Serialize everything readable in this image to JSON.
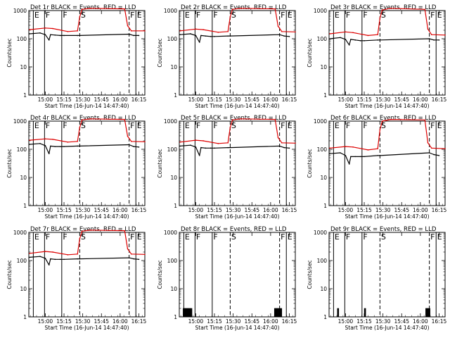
{
  "figure": {
    "xtick_labels": [
      "15:00",
      "15:15",
      "15:30",
      "15:45",
      "16:00",
      "16:15"
    ],
    "ytick_labels": [
      "1",
      "10",
      "100",
      "1000"
    ],
    "ylabel": "Counts/sec",
    "xlabel": "Start Time (16-Jun-14 14:47:40)"
  },
  "legend_colors": {
    "events": "#000000",
    "lld": "#dd0000"
  },
  "chart_data": [
    {
      "type": "line",
      "title": "Det 1r BLACK = Events, RED = LLD",
      "xlabel": "Start Time (16-Jun-14 14:47:40)",
      "ylabel": "Counts/sec",
      "yscale": "log",
      "ylim": [
        1,
        1000
      ],
      "xlim": [
        14.78,
        16.33
      ],
      "x_units": "hours (UT, 16-Jun-14)",
      "markers": [
        {
          "label": "E",
          "x": 14.84,
          "style": "solid"
        },
        {
          "label": "F",
          "x": 14.99,
          "style": "solid"
        },
        {
          "label": "F",
          "x": 15.22,
          "style": "solid"
        },
        {
          "label": "S",
          "x": 15.46,
          "style": "dashed"
        },
        {
          "label": "F",
          "x": 16.12,
          "style": "dashed"
        },
        {
          "label": "E",
          "x": 16.21,
          "style": "solid"
        }
      ],
      "series": [
        {
          "name": "Events",
          "color": "#000000",
          "x": [
            14.79,
            14.93,
            15.0,
            15.05,
            15.07,
            15.13,
            15.2,
            15.25,
            15.43,
            15.46,
            16.12,
            16.18,
            16.25
          ],
          "y": [
            150,
            160,
            140,
            90,
            140,
            135,
            130,
            130,
            130,
            130,
            145,
            130,
            130
          ]
        },
        {
          "name": "LLD",
          "color": "#dd0000",
          "x": [
            14.79,
            15.0,
            15.1,
            15.3,
            15.43,
            15.46,
            15.49,
            15.6,
            16.06,
            16.1,
            16.15,
            16.33
          ],
          "y": [
            210,
            240,
            230,
            180,
            190,
            600,
            1100,
            1200,
            1150,
            290,
            190,
            190
          ]
        }
      ]
    },
    {
      "type": "line",
      "title": "Det 2r BLACK = Events, RED = LLD",
      "xlabel": "Start Time (16-Jun-14 14:47:40)",
      "ylabel": "Counts/sec",
      "yscale": "log",
      "ylim": [
        1,
        1000
      ],
      "xlim": [
        14.78,
        16.33
      ],
      "x_units": "hours (UT, 16-Jun-14)",
      "markers": [
        {
          "label": "E",
          "x": 14.84,
          "style": "solid"
        },
        {
          "label": "F",
          "x": 14.99,
          "style": "solid"
        },
        {
          "label": "F",
          "x": 15.22,
          "style": "solid"
        },
        {
          "label": "S",
          "x": 15.46,
          "style": "dashed"
        },
        {
          "label": "F",
          "x": 16.12,
          "style": "dashed"
        },
        {
          "label": "E",
          "x": 16.21,
          "style": "solid"
        }
      ],
      "series": [
        {
          "name": "Events",
          "color": "#000000",
          "x": [
            14.79,
            14.93,
            15.0,
            15.05,
            15.07,
            15.13,
            15.2,
            15.25,
            15.43,
            15.46,
            16.12,
            16.18,
            16.25
          ],
          "y": [
            140,
            150,
            130,
            75,
            130,
            125,
            120,
            120,
            125,
            125,
            140,
            125,
            120
          ]
        },
        {
          "name": "LLD",
          "color": "#dd0000",
          "x": [
            14.79,
            15.0,
            15.1,
            15.3,
            15.43,
            15.46,
            15.49,
            15.6,
            16.06,
            16.1,
            16.15,
            16.33
          ],
          "y": [
            190,
            220,
            210,
            170,
            180,
            600,
            1100,
            1200,
            1150,
            280,
            180,
            175
          ]
        }
      ]
    },
    {
      "type": "line",
      "title": "Det 3r BLACK = Events, RED = LLD",
      "xlabel": "Start Time (16-Jun-14 14:47:40)",
      "ylabel": "Counts/sec",
      "yscale": "log",
      "ylim": [
        1,
        1000
      ],
      "xlim": [
        14.78,
        16.33
      ],
      "x_units": "hours (UT, 16-Jun-14)",
      "markers": [
        {
          "label": "E",
          "x": 14.84,
          "style": "solid"
        },
        {
          "label": "F",
          "x": 14.99,
          "style": "solid"
        },
        {
          "label": "F",
          "x": 15.22,
          "style": "solid"
        },
        {
          "label": "S",
          "x": 15.46,
          "style": "dashed"
        },
        {
          "label": "F",
          "x": 16.12,
          "style": "dashed"
        },
        {
          "label": "E",
          "x": 16.21,
          "style": "solid"
        }
      ],
      "series": [
        {
          "name": "Events",
          "color": "#000000",
          "x": [
            14.79,
            14.93,
            15.0,
            15.05,
            15.07,
            15.13,
            15.2,
            15.25,
            15.43,
            15.46,
            16.12,
            16.18,
            16.25
          ],
          "y": [
            100,
            110,
            95,
            60,
            95,
            90,
            85,
            85,
            90,
            90,
            100,
            90,
            90
          ]
        },
        {
          "name": "LLD",
          "color": "#dd0000",
          "x": [
            14.79,
            15.0,
            15.1,
            15.3,
            15.43,
            15.46,
            15.49,
            15.6,
            16.06,
            16.1,
            16.15,
            16.33
          ],
          "y": [
            150,
            175,
            165,
            130,
            140,
            550,
            1050,
            1200,
            1100,
            220,
            140,
            135
          ]
        }
      ]
    },
    {
      "type": "line",
      "title": "Det 4r BLACK = Events, RED = LLD",
      "xlabel": "Start Time (16-Jun-14 14:47:40)",
      "ylabel": "Counts/sec",
      "yscale": "log",
      "ylim": [
        1,
        1000
      ],
      "xlim": [
        14.78,
        16.33
      ],
      "x_units": "hours (UT, 16-Jun-14)",
      "markers": [
        {
          "label": "E",
          "x": 14.84,
          "style": "solid"
        },
        {
          "label": "F",
          "x": 14.99,
          "style": "solid"
        },
        {
          "label": "F",
          "x": 15.22,
          "style": "solid"
        },
        {
          "label": "S",
          "x": 15.46,
          "style": "dashed"
        },
        {
          "label": "F",
          "x": 16.12,
          "style": "dashed"
        },
        {
          "label": "E",
          "x": 16.21,
          "style": "solid"
        }
      ],
      "series": [
        {
          "name": "Events",
          "color": "#000000",
          "x": [
            14.79,
            14.93,
            15.0,
            15.05,
            15.07,
            15.13,
            15.2,
            15.25,
            15.43,
            15.46,
            16.12,
            16.18,
            16.25
          ],
          "y": [
            150,
            160,
            135,
            70,
            130,
            125,
            125,
            125,
            130,
            130,
            145,
            125,
            120
          ]
        },
        {
          "name": "LLD",
          "color": "#dd0000",
          "x": [
            14.79,
            15.0,
            15.1,
            15.3,
            15.43,
            15.46,
            15.49,
            15.6,
            16.06,
            16.1,
            16.15,
            16.33
          ],
          "y": [
            210,
            235,
            225,
            180,
            190,
            600,
            1100,
            1200,
            1150,
            290,
            190,
            185
          ]
        }
      ]
    },
    {
      "type": "line",
      "title": "Det 5r BLACK = Events, RED = LLD",
      "xlabel": "Start Time (16-Jun-14 14:47:40)",
      "ylabel": "Counts/sec",
      "yscale": "log",
      "ylim": [
        1,
        1000
      ],
      "xlim": [
        14.78,
        16.33
      ],
      "x_units": "hours (UT, 16-Jun-14)",
      "markers": [
        {
          "label": "E",
          "x": 14.84,
          "style": "solid"
        },
        {
          "label": "F",
          "x": 14.99,
          "style": "solid"
        },
        {
          "label": "F",
          "x": 15.22,
          "style": "solid"
        },
        {
          "label": "S",
          "x": 15.46,
          "style": "dashed"
        },
        {
          "label": "F",
          "x": 16.12,
          "style": "dashed"
        },
        {
          "label": "E",
          "x": 16.21,
          "style": "solid"
        }
      ],
      "series": [
        {
          "name": "Events",
          "color": "#000000",
          "x": [
            14.79,
            14.93,
            15.0,
            15.05,
            15.07,
            15.13,
            15.2,
            15.25,
            15.43,
            15.46,
            16.12,
            16.18,
            16.25
          ],
          "y": [
            130,
            140,
            120,
            60,
            115,
            110,
            110,
            110,
            115,
            115,
            130,
            115,
            110
          ]
        },
        {
          "name": "LLD",
          "color": "#dd0000",
          "x": [
            14.79,
            15.0,
            15.1,
            15.3,
            15.43,
            15.46,
            15.49,
            15.6,
            16.06,
            16.1,
            16.15,
            16.33
          ],
          "y": [
            180,
            210,
            200,
            160,
            170,
            600,
            1100,
            1200,
            1150,
            260,
            170,
            165
          ]
        }
      ]
    },
    {
      "type": "line",
      "title": "Det 6r BLACK = Events, RED = LLD",
      "xlabel": "Start Time (16-Jun-14 14:47:40)",
      "ylabel": "Counts/sec",
      "yscale": "log",
      "ylim": [
        1,
        1000
      ],
      "xlim": [
        14.78,
        16.33
      ],
      "x_units": "hours (UT, 16-Jun-14)",
      "markers": [
        {
          "label": "E",
          "x": 14.84,
          "style": "solid"
        },
        {
          "label": "F",
          "x": 14.99,
          "style": "solid"
        },
        {
          "label": "F",
          "x": 15.22,
          "style": "solid"
        },
        {
          "label": "S",
          "x": 15.46,
          "style": "dashed"
        },
        {
          "label": "F",
          "x": 16.12,
          "style": "dashed"
        },
        {
          "label": "E",
          "x": 16.21,
          "style": "solid"
        }
      ],
      "series": [
        {
          "name": "Events",
          "color": "#000000",
          "x": [
            14.79,
            14.93,
            15.0,
            15.05,
            15.07,
            15.13,
            15.2,
            15.25,
            15.43,
            15.46,
            16.12,
            16.18,
            16.25
          ],
          "y": [
            70,
            75,
            60,
            30,
            55,
            55,
            55,
            55,
            60,
            60,
            75,
            65,
            60
          ]
        },
        {
          "name": "LLD",
          "color": "#dd0000",
          "x": [
            14.79,
            15.0,
            15.1,
            15.3,
            15.43,
            15.46,
            15.49,
            15.6,
            16.06,
            16.1,
            16.15,
            16.33
          ],
          "y": [
            110,
            125,
            120,
            95,
            105,
            500,
            1000,
            1150,
            1100,
            170,
            110,
            105
          ]
        }
      ]
    },
    {
      "type": "line",
      "title": "Det 7r BLACK = Events, RED = LLD",
      "xlabel": "Start Time (16-Jun-14 14:47:40)",
      "ylabel": "Counts/sec",
      "yscale": "log",
      "ylim": [
        1,
        1000
      ],
      "xlim": [
        14.78,
        16.33
      ],
      "x_units": "hours (UT, 16-Jun-14)",
      "markers": [
        {
          "label": "E",
          "x": 14.84,
          "style": "solid"
        },
        {
          "label": "F",
          "x": 14.99,
          "style": "solid"
        },
        {
          "label": "F",
          "x": 15.22,
          "style": "solid"
        },
        {
          "label": "S",
          "x": 15.46,
          "style": "dashed"
        },
        {
          "label": "F",
          "x": 16.12,
          "style": "dashed"
        },
        {
          "label": "E",
          "x": 16.21,
          "style": "solid"
        }
      ],
      "series": [
        {
          "name": "Events",
          "color": "#000000",
          "x": [
            14.79,
            14.93,
            15.0,
            15.05,
            15.07,
            15.13,
            15.2,
            15.25,
            15.43,
            15.46,
            16.12,
            16.18,
            16.25
          ],
          "y": [
            130,
            140,
            120,
            70,
            115,
            110,
            110,
            110,
            115,
            115,
            125,
            115,
            110
          ]
        },
        {
          "name": "LLD",
          "color": "#dd0000",
          "x": [
            14.79,
            15.0,
            15.1,
            15.3,
            15.43,
            15.46,
            15.49,
            15.6,
            16.06,
            16.1,
            16.15,
            16.33
          ],
          "y": [
            180,
            210,
            200,
            160,
            170,
            600,
            1100,
            1200,
            1150,
            260,
            170,
            165
          ]
        }
      ]
    },
    {
      "type": "bar",
      "title": "Det 8r BLACK = Events, RED = LLD",
      "xlabel": "Start Time (16-Jun-14 14:47:40)",
      "ylabel": "Counts/sec",
      "yscale": "log",
      "ylim": [
        1,
        1000
      ],
      "xlim": [
        14.78,
        16.33
      ],
      "x_units": "hours (UT, 16-Jun-14)",
      "markers": [
        {
          "label": "E",
          "x": 14.84,
          "style": "solid"
        },
        {
          "label": "F",
          "x": 14.99,
          "style": "solid"
        },
        {
          "label": "F",
          "x": 15.22,
          "style": "solid"
        },
        {
          "label": "S",
          "x": 15.46,
          "style": "dashed"
        },
        {
          "label": "F",
          "x": 16.12,
          "style": "dashed"
        },
        {
          "label": "E",
          "x": 16.21,
          "style": "solid"
        }
      ],
      "series": [
        {
          "name": "Events",
          "color": "#000000",
          "x": [
            14.84,
            14.86,
            14.88,
            14.9,
            14.92,
            14.94,
            16.06,
            16.08,
            16.1,
            16.12,
            16.14
          ],
          "y": [
            2,
            2,
            2,
            2,
            2,
            2,
            2,
            2,
            2,
            2,
            2
          ]
        }
      ]
    },
    {
      "type": "bar",
      "title": "Det 9r BLACK = Events, RED = LLD",
      "xlabel": "Start Time (16-Jun-14 14:47:40)",
      "ylabel": "Counts/sec",
      "yscale": "log",
      "ylim": [
        1,
        1000
      ],
      "xlim": [
        14.78,
        16.33
      ],
      "x_units": "hours (UT, 16-Jun-14)",
      "markers": [
        {
          "label": "E",
          "x": 14.84,
          "style": "solid"
        },
        {
          "label": "F",
          "x": 14.99,
          "style": "solid"
        },
        {
          "label": "F",
          "x": 15.22,
          "style": "solid"
        },
        {
          "label": "S",
          "x": 15.46,
          "style": "dashed"
        },
        {
          "label": "F",
          "x": 16.12,
          "style": "dashed"
        },
        {
          "label": "E",
          "x": 16.21,
          "style": "solid"
        }
      ],
      "series": [
        {
          "name": "Events",
          "color": "#000000",
          "x": [
            14.9,
            15.26,
            16.08,
            16.1,
            16.12
          ],
          "y": [
            2,
            2,
            2,
            2,
            2
          ]
        }
      ]
    }
  ]
}
